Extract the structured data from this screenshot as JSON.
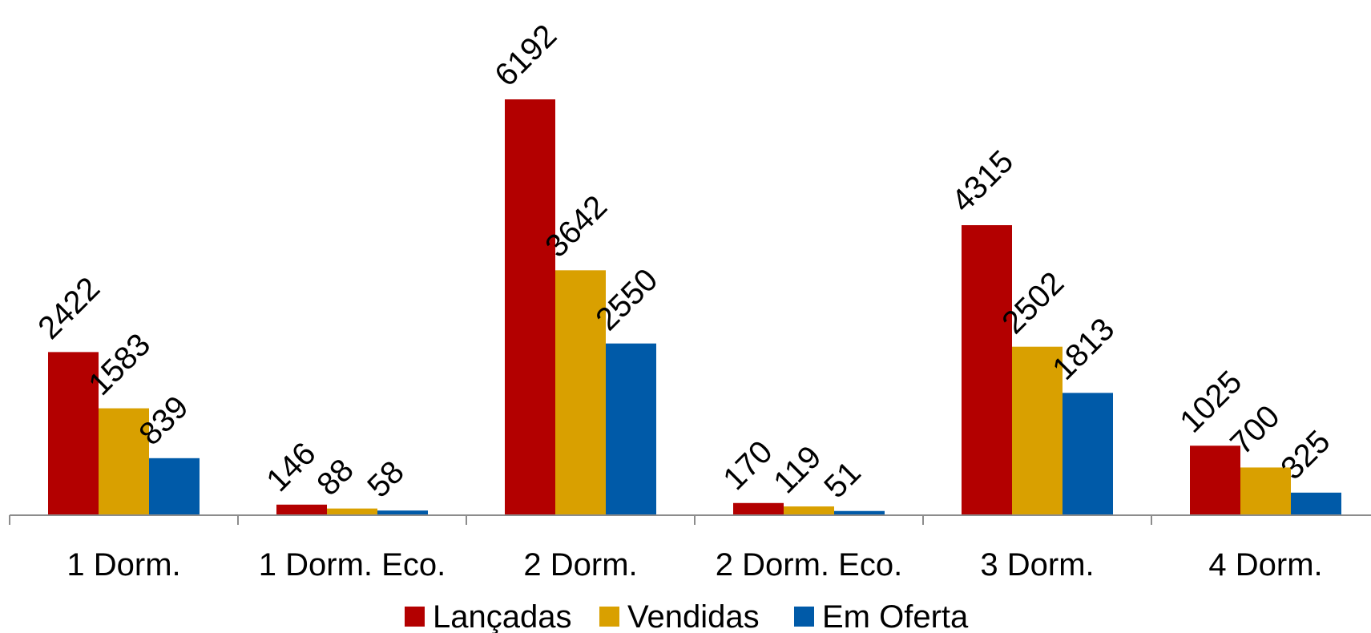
{
  "chart_data": {
    "type": "bar",
    "categories": [
      "1 Dorm.",
      "1 Dorm. Eco.",
      "2 Dorm.",
      "2 Dorm. Eco.",
      "3 Dorm.",
      "4 Dorm."
    ],
    "series": [
      {
        "name": "Lançadas",
        "color": "#b30000",
        "values": [
          2422,
          146,
          6192,
          170,
          4315,
          1025
        ]
      },
      {
        "name": "Vendidas",
        "color": "#d9a000",
        "values": [
          1583,
          88,
          3642,
          119,
          2502,
          700
        ]
      },
      {
        "name": "Em Oferta",
        "color": "#005aa8",
        "values": [
          839,
          58,
          2550,
          51,
          1813,
          325
        ]
      }
    ],
    "data_labels": true,
    "legend_position": "bottom",
    "grid": false,
    "ylim": [
      0,
      7000
    ]
  }
}
